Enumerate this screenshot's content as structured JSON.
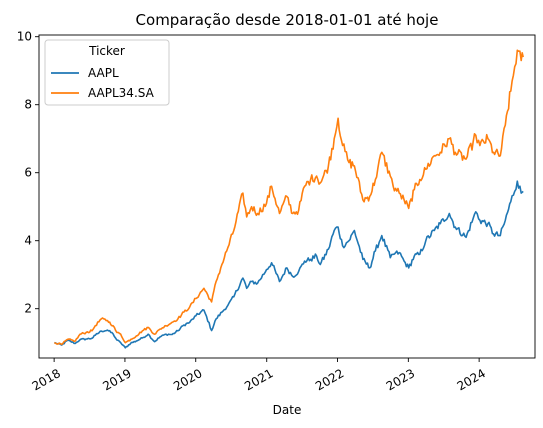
{
  "chart_data": {
    "type": "line",
    "title": "Comparação desde 2018-01-01 até hoje",
    "xlabel": "Date",
    "ylabel": "",
    "xlim": [
      "2017-10-15",
      "2024-10-15"
    ],
    "ylim": [
      0.55,
      10.05
    ],
    "x_ticks": [
      "2018",
      "2019",
      "2020",
      "2021",
      "2022",
      "2023",
      "2024"
    ],
    "y_ticks": [
      "2",
      "4",
      "6",
      "8",
      "10"
    ],
    "grid": false,
    "legend": {
      "title": "Ticker",
      "placement": "top-left"
    },
    "series": [
      {
        "name": "AAPL",
        "color": "#1f77b4",
        "points": [
          [
            "2018-01-02",
            1.0
          ],
          [
            "2018-02-09",
            0.93
          ],
          [
            "2018-03-12",
            1.07
          ],
          [
            "2018-04-20",
            0.98
          ],
          [
            "2018-05-15",
            1.09
          ],
          [
            "2018-06-15",
            1.11
          ],
          [
            "2018-07-15",
            1.13
          ],
          [
            "2018-08-01",
            1.22
          ],
          [
            "2018-09-01",
            1.34
          ],
          [
            "2018-10-03",
            1.37
          ],
          [
            "2018-11-01",
            1.26
          ],
          [
            "2018-11-20",
            1.08
          ],
          [
            "2018-12-10",
            1.0
          ],
          [
            "2019-01-03",
            0.85
          ],
          [
            "2019-02-01",
            0.99
          ],
          [
            "2019-03-01",
            1.05
          ],
          [
            "2019-04-01",
            1.14
          ],
          [
            "2019-05-01",
            1.25
          ],
          [
            "2019-06-03",
            1.03
          ],
          [
            "2019-07-01",
            1.17
          ],
          [
            "2019-08-01",
            1.25
          ],
          [
            "2019-09-01",
            1.24
          ],
          [
            "2019-10-01",
            1.35
          ],
          [
            "2019-11-01",
            1.52
          ],
          [
            "2019-12-01",
            1.6
          ],
          [
            "2020-01-02",
            1.79
          ],
          [
            "2020-02-12",
            1.96
          ],
          [
            "2020-03-23",
            1.36
          ],
          [
            "2020-04-15",
            1.7
          ],
          [
            "2020-05-15",
            1.9
          ],
          [
            "2020-06-15",
            2.1
          ],
          [
            "2020-07-15",
            2.35
          ],
          [
            "2020-08-31",
            2.9
          ],
          [
            "2020-09-20",
            2.6
          ],
          [
            "2020-10-15",
            2.8
          ],
          [
            "2020-11-15",
            2.75
          ],
          [
            "2020-12-31",
            3.15
          ],
          [
            "2021-01-26",
            3.35
          ],
          [
            "2021-03-08",
            2.8
          ],
          [
            "2021-04-15",
            3.2
          ],
          [
            "2021-05-15",
            2.95
          ],
          [
            "2021-06-15",
            3.1
          ],
          [
            "2021-07-15",
            3.4
          ],
          [
            "2021-08-15",
            3.45
          ],
          [
            "2021-09-15",
            3.55
          ],
          [
            "2021-10-04",
            3.3
          ],
          [
            "2021-11-15",
            3.75
          ],
          [
            "2021-12-15",
            4.3
          ],
          [
            "2022-01-04",
            4.4
          ],
          [
            "2022-01-27",
            3.85
          ],
          [
            "2022-03-01",
            4.0
          ],
          [
            "2022-03-29",
            4.3
          ],
          [
            "2022-05-12",
            3.45
          ],
          [
            "2022-06-16",
            3.2
          ],
          [
            "2022-07-15",
            3.7
          ],
          [
            "2022-08-17",
            4.15
          ],
          [
            "2022-09-30",
            3.5
          ],
          [
            "2022-10-15",
            3.6
          ],
          [
            "2022-11-15",
            3.65
          ],
          [
            "2022-12-10",
            3.4
          ],
          [
            "2023-01-03",
            3.2
          ],
          [
            "2023-02-01",
            3.55
          ],
          [
            "2023-03-01",
            3.6
          ],
          [
            "2023-04-01",
            4.0
          ],
          [
            "2023-05-15",
            4.3
          ],
          [
            "2023-06-15",
            4.5
          ],
          [
            "2023-07-31",
            4.8
          ],
          [
            "2023-08-31",
            4.4
          ],
          [
            "2023-10-26",
            4.1
          ],
          [
            "2023-12-01",
            4.65
          ],
          [
            "2023-12-15",
            4.85
          ],
          [
            "2024-01-05",
            4.6
          ],
          [
            "2024-02-15",
            4.5
          ],
          [
            "2024-03-15",
            4.2
          ],
          [
            "2024-04-19",
            4.15
          ],
          [
            "2024-05-15",
            4.6
          ],
          [
            "2024-06-12",
            5.15
          ],
          [
            "2024-07-16",
            5.75
          ],
          [
            "2024-08-05",
            5.4
          ],
          [
            "2024-08-15",
            5.45
          ]
        ]
      },
      {
        "name": "AAPL34.SA",
        "color": "#ff7f0e",
        "points": [
          [
            "2018-01-02",
            1.0
          ],
          [
            "2018-02-09",
            0.95
          ],
          [
            "2018-03-12",
            1.1
          ],
          [
            "2018-04-20",
            1.05
          ],
          [
            "2018-05-15",
            1.25
          ],
          [
            "2018-06-15",
            1.3
          ],
          [
            "2018-07-15",
            1.35
          ],
          [
            "2018-08-01",
            1.5
          ],
          [
            "2018-09-01",
            1.7
          ],
          [
            "2018-10-03",
            1.65
          ],
          [
            "2018-11-01",
            1.5
          ],
          [
            "2018-11-20",
            1.3
          ],
          [
            "2018-12-10",
            1.25
          ],
          [
            "2019-01-03",
            1.0
          ],
          [
            "2019-02-01",
            1.1
          ],
          [
            "2019-03-01",
            1.2
          ],
          [
            "2019-04-01",
            1.35
          ],
          [
            "2019-05-01",
            1.45
          ],
          [
            "2019-06-03",
            1.25
          ],
          [
            "2019-07-01",
            1.4
          ],
          [
            "2019-08-01",
            1.5
          ],
          [
            "2019-09-01",
            1.6
          ],
          [
            "2019-10-01",
            1.7
          ],
          [
            "2019-11-01",
            1.9
          ],
          [
            "2019-12-01",
            2.05
          ],
          [
            "2020-01-02",
            2.3
          ],
          [
            "2020-02-12",
            2.6
          ],
          [
            "2020-03-23",
            2.2
          ],
          [
            "2020-04-15",
            2.8
          ],
          [
            "2020-05-15",
            3.3
          ],
          [
            "2020-06-15",
            3.8
          ],
          [
            "2020-07-15",
            4.3
          ],
          [
            "2020-08-31",
            5.4
          ],
          [
            "2020-09-20",
            4.7
          ],
          [
            "2020-10-15",
            5.0
          ],
          [
            "2020-11-15",
            4.8
          ],
          [
            "2020-12-31",
            5.1
          ],
          [
            "2021-01-26",
            5.6
          ],
          [
            "2021-03-08",
            4.8
          ],
          [
            "2021-04-15",
            5.3
          ],
          [
            "2021-05-15",
            4.8
          ],
          [
            "2021-06-15",
            4.9
          ],
          [
            "2021-07-15",
            5.6
          ],
          [
            "2021-08-15",
            5.8
          ],
          [
            "2021-09-15",
            5.9
          ],
          [
            "2021-10-04",
            5.7
          ],
          [
            "2021-11-15",
            6.2
          ],
          [
            "2021-12-15",
            7.0
          ],
          [
            "2022-01-04",
            7.6
          ],
          [
            "2022-01-27",
            6.8
          ],
          [
            "2022-03-01",
            6.3
          ],
          [
            "2022-03-29",
            6.2
          ],
          [
            "2022-05-12",
            5.2
          ],
          [
            "2022-06-16",
            5.3
          ],
          [
            "2022-07-15",
            5.8
          ],
          [
            "2022-08-17",
            6.6
          ],
          [
            "2022-09-30",
            5.9
          ],
          [
            "2022-10-15",
            5.6
          ],
          [
            "2022-11-15",
            5.4
          ],
          [
            "2022-12-10",
            5.2
          ],
          [
            "2023-01-03",
            4.95
          ],
          [
            "2023-02-01",
            5.5
          ],
          [
            "2023-03-01",
            5.8
          ],
          [
            "2023-04-01",
            6.1
          ],
          [
            "2023-05-15",
            6.5
          ],
          [
            "2023-06-15",
            6.6
          ],
          [
            "2023-07-31",
            7.0
          ],
          [
            "2023-08-31",
            6.6
          ],
          [
            "2023-10-26",
            6.4
          ],
          [
            "2023-12-01",
            6.9
          ],
          [
            "2023-12-15",
            7.1
          ],
          [
            "2024-01-05",
            6.8
          ],
          [
            "2024-02-15",
            7.0
          ],
          [
            "2024-03-15",
            6.6
          ],
          [
            "2024-04-19",
            6.5
          ],
          [
            "2024-05-15",
            7.4
          ],
          [
            "2024-06-12",
            8.4
          ],
          [
            "2024-07-16",
            9.6
          ],
          [
            "2024-08-05",
            9.3
          ],
          [
            "2024-08-15",
            9.4
          ]
        ]
      }
    ]
  }
}
